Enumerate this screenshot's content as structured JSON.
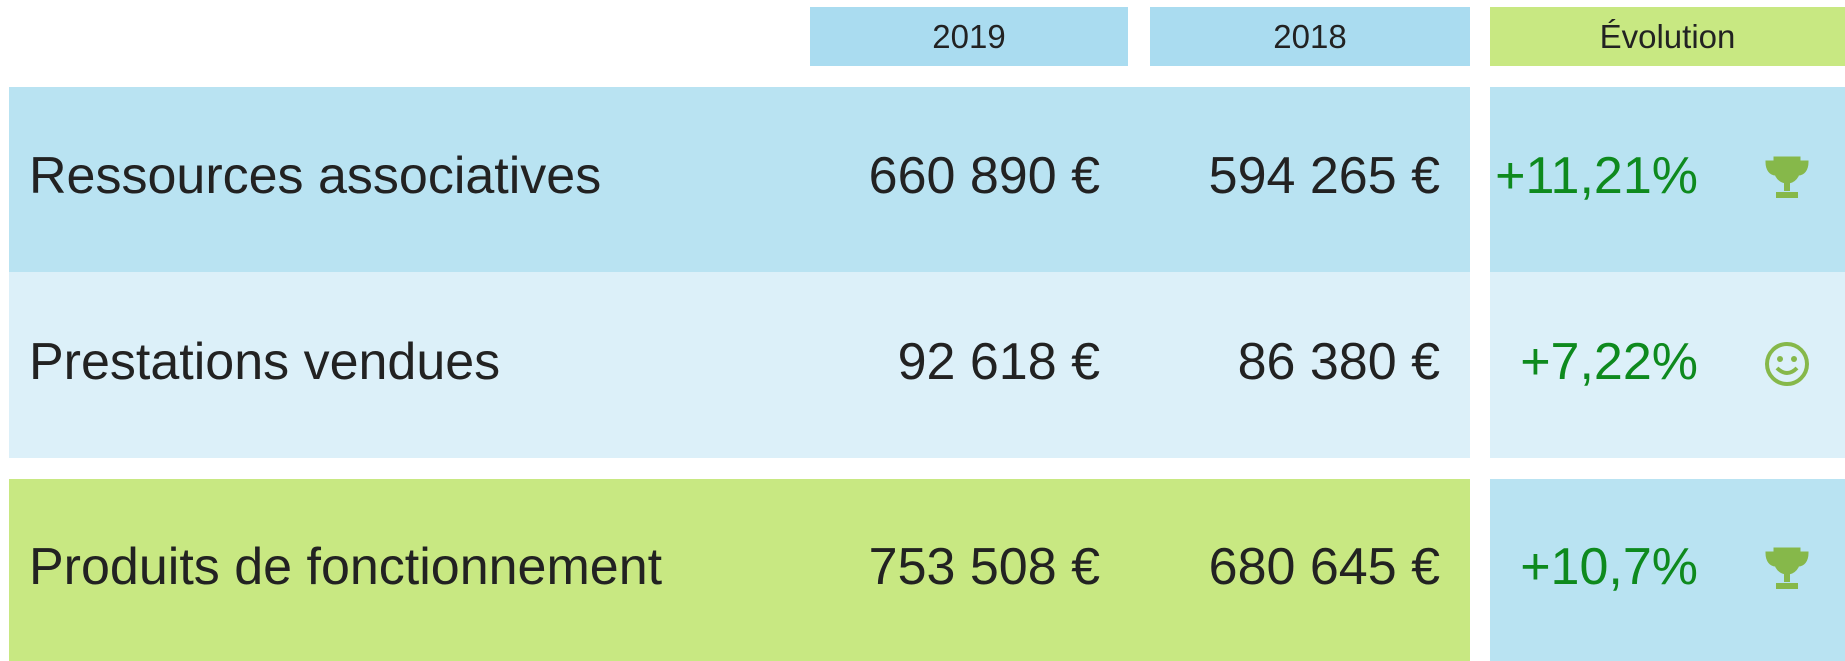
{
  "header": [
    "2019",
    "2018",
    "Évolution"
  ],
  "rows": [
    {
      "label": "Ressources associatives",
      "v2019": "660 890 €",
      "v2018": "594 265 €",
      "evolution": "+11,21%"
    },
    {
      "label": "Prestations vendues",
      "v2019": "92 618 €",
      "v2018": "86 380 €",
      "evolution": "+7,22%"
    },
    {
      "label": "Produits de fonctionnement",
      "v2019": "753 508 €",
      "v2018": "680 645 €",
      "evolution": "+10,7%"
    }
  ]
}
